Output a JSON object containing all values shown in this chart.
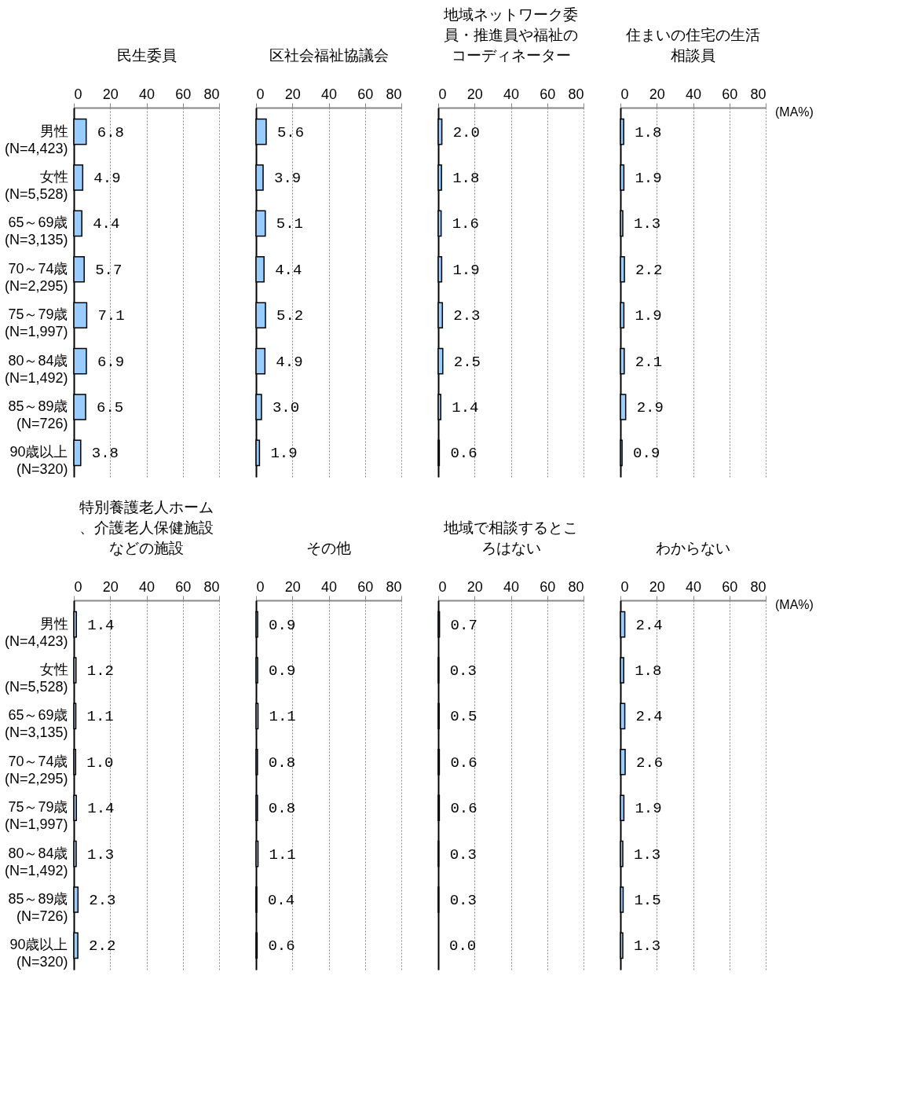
{
  "chart_data": [
    {
      "type": "bar",
      "orientation": "horizontal",
      "title": "民生委員",
      "categories": [
        "男性\n(N=4,423)",
        "女性\n(N=5,528)",
        "65～69歳\n(N=3,135)",
        "70～74歳\n(N=2,295)",
        "75～79歳\n(N=1,997)",
        "80～84歳\n(N=1,492)",
        "85～89歳\n(N=726)",
        "90歳以上\n(N=320)"
      ],
      "values": [
        6.8,
        4.9,
        4.4,
        5.7,
        7.1,
        6.9,
        6.5,
        3.8
      ],
      "value_labels": [
        "6.8",
        "4.9",
        "4.4",
        "5.7",
        "7.1",
        "6.9",
        "6.5",
        "3.8"
      ],
      "color": "#99ccff",
      "xlim": [
        0,
        80
      ],
      "xticks": [
        0,
        20,
        40,
        60,
        80
      ],
      "grid": "x"
    },
    {
      "type": "bar",
      "orientation": "horizontal",
      "title": "区社会福祉協議会",
      "categories": [
        "男性\n(N=4,423)",
        "女性\n(N=5,528)",
        "65～69歳\n(N=3,135)",
        "70～74歳\n(N=2,295)",
        "75～79歳\n(N=1,997)",
        "80～84歳\n(N=1,492)",
        "85～89歳\n(N=726)",
        "90歳以上\n(N=320)"
      ],
      "values": [
        5.6,
        3.9,
        5.1,
        4.4,
        5.2,
        4.9,
        3.0,
        1.9
      ],
      "value_labels": [
        "5.6",
        "3.9",
        "5.1",
        "4.4",
        "5.2",
        "4.9",
        "3.0",
        "1.9"
      ],
      "color": "#99ccff",
      "xlim": [
        0,
        80
      ],
      "xticks": [
        0,
        20,
        40,
        60,
        80
      ],
      "grid": "x",
      "tick_labels": "x"
    },
    {
      "type": "bar",
      "orientation": "horizontal",
      "title": "地域ネットワーク委員・推進員や福祉のコーディネーター",
      "categories": [
        "男性\n(N=4,423)",
        "女性\n(N=5,528)",
        "65～69歳\n(N=3,135)",
        "70～74歳\n(N=2,295)",
        "75～79歳\n(N=1,997)",
        "80～84歳\n(N=1,492)",
        "85～89歳\n(N=726)",
        "90歳以上\n(N=320)"
      ],
      "values": [
        2.0,
        1.8,
        1.6,
        1.9,
        2.3,
        2.5,
        1.4,
        0.6
      ],
      "value_labels": [
        "2.0",
        "1.8",
        "1.6",
        "1.9",
        "2.3",
        "2.5",
        "1.4",
        "0.6"
      ],
      "color": "#99ccff",
      "xlim": [
        0,
        80
      ],
      "xticks": [
        0,
        20,
        40,
        60,
        80
      ],
      "grid": "x",
      "tick_labels": "x"
    },
    {
      "type": "bar",
      "orientation": "horizontal",
      "title": "住まいの住宅の生活相談員",
      "categories": [
        "男性\n(N=4,423)",
        "女性\n(N=5,528)",
        "65～69歳\n(N=3,135)",
        "70～74歳\n(N=2,295)",
        "75～79歳\n(N=1,997)",
        "80～84歳\n(N=1,492)",
        "85～89歳\n(N=726)",
        "90歳以上\n(N=320)"
      ],
      "values": [
        1.8,
        1.9,
        1.3,
        2.2,
        1.9,
        2.1,
        2.9,
        0.9
      ],
      "value_labels": [
        "1.8",
        "1.9",
        "1.3",
        "2.2",
        "1.9",
        "2.1",
        "2.9",
        "0.9"
      ],
      "color": "#99ccff",
      "xlim": [
        0,
        80
      ],
      "xticks": [
        0,
        20,
        40,
        60,
        80
      ],
      "grid": "x",
      "tick_labels": "x",
      "annotations": [
        "(MA%)"
      ]
    },
    {
      "type": "bar",
      "orientation": "horizontal",
      "title": "特別養護老人ホーム、介護老人保健施設などの施設",
      "categories": [
        "男性\n(N=4,423)",
        "女性\n(N=5,528)",
        "65～69歳\n(N=3,135)",
        "70～74歳\n(N=2,295)",
        "75～79歳\n(N=1,997)",
        "80～84歳\n(N=1,492)",
        "85～89歳\n(N=726)",
        "90歳以上\n(N=320)"
      ],
      "values": [
        1.4,
        1.2,
        1.1,
        1.0,
        1.4,
        1.3,
        2.3,
        2.2
      ],
      "value_labels": [
        "1.4",
        "1.2",
        "1.1",
        "1.0",
        "1.4",
        "1.3",
        "2.3",
        "2.2"
      ],
      "color": "#99ccff",
      "xlim": [
        0,
        80
      ],
      "xticks": [
        0,
        20,
        40,
        60,
        80
      ],
      "grid": "x"
    },
    {
      "type": "bar",
      "orientation": "horizontal",
      "title": "その他",
      "categories": [
        "男性\n(N=4,423)",
        "女性\n(N=5,528)",
        "65～69歳\n(N=3,135)",
        "70～74歳\n(N=2,295)",
        "75～79歳\n(N=1,997)",
        "80～84歳\n(N=1,492)",
        "85～89歳\n(N=726)",
        "90歳以上\n(N=320)"
      ],
      "values": [
        0.9,
        0.9,
        1.1,
        0.8,
        0.8,
        1.1,
        0.4,
        0.6
      ],
      "value_labels": [
        "0.9",
        "0.9",
        "1.1",
        "0.8",
        "0.8",
        "1.1",
        "0.4",
        "0.6"
      ],
      "color": "#99ccff",
      "xlim": [
        0,
        80
      ],
      "xticks": [
        0,
        20,
        40,
        60,
        80
      ],
      "grid": "x",
      "tick_labels": "x"
    },
    {
      "type": "bar",
      "orientation": "horizontal",
      "title": "地域で相談するところはない",
      "categories": [
        "男性\n(N=4,423)",
        "女性\n(N=5,528)",
        "65～69歳\n(N=3,135)",
        "70～74歳\n(N=2,295)",
        "75～79歳\n(N=1,997)",
        "80～84歳\n(N=1,492)",
        "85～89歳\n(N=726)",
        "90歳以上\n(N=320)"
      ],
      "values": [
        0.7,
        0.3,
        0.5,
        0.6,
        0.6,
        0.3,
        0.3,
        0.0
      ],
      "value_labels": [
        "0.7",
        "0.3",
        "0.5",
        "0.6",
        "0.6",
        "0.3",
        "0.3",
        "0.0"
      ],
      "color": "#99ccff",
      "xlim": [
        0,
        80
      ],
      "xticks": [
        0,
        20,
        40,
        60,
        80
      ],
      "grid": "x",
      "tick_labels": "x"
    },
    {
      "type": "bar",
      "orientation": "horizontal",
      "title": "わからない",
      "categories": [
        "男性\n(N=4,423)",
        "女性\n(N=5,528)",
        "65～69歳\n(N=3,135)",
        "70～74歳\n(N=2,295)",
        "75～79歳\n(N=1,997)",
        "80～84歳\n(N=1,492)",
        "85～89歳\n(N=726)",
        "90歳以上\n(N=320)"
      ],
      "values": [
        2.4,
        1.8,
        2.4,
        2.6,
        1.9,
        1.3,
        1.5,
        1.3
      ],
      "value_labels": [
        "2.4",
        "1.8",
        "2.4",
        "2.6",
        "1.9",
        "1.3",
        "1.5",
        "1.3"
      ],
      "color": "#99ccff",
      "xlim": [
        0,
        80
      ],
      "xticks": [
        0,
        20,
        40,
        60,
        80
      ],
      "grid": "x",
      "tick_labels": "x",
      "annotations": [
        "(MA%)"
      ]
    }
  ]
}
